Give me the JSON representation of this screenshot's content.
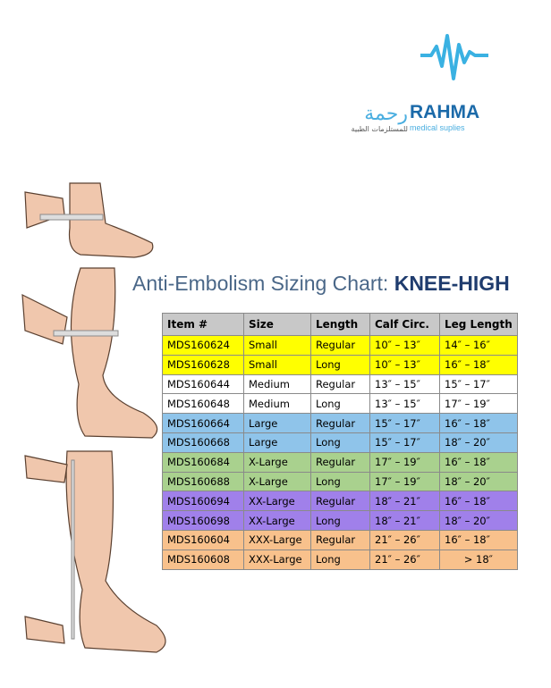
{
  "logo": {
    "name": "RAHMA",
    "tagline": "medical suplies",
    "arabic_name": "رحمة",
    "arabic_tagline": "للمستلزمات الطبية"
  },
  "title": {
    "text": "Anti-Embolism Sizing Chart: ",
    "emphasis": "KNEE-HIGH"
  },
  "table": {
    "header": [
      "Item #",
      "Size",
      "Length",
      "Calf Circ.",
      "Leg Length"
    ],
    "rows": [
      {
        "color": "#ffff00",
        "cells": [
          "MDS160624",
          "Small",
          "Regular",
          "10″ – 13″",
          "14″ – 16″"
        ]
      },
      {
        "color": "#ffff00",
        "cells": [
          "MDS160628",
          "Small",
          "Long",
          "10″ – 13″",
          "16″ – 18″"
        ]
      },
      {
        "color": "#ffffff",
        "cells": [
          "MDS160644",
          "Medium",
          "Regular",
          "13″ – 15″",
          "15″ – 17″"
        ]
      },
      {
        "color": "#ffffff",
        "cells": [
          "MDS160648",
          "Medium",
          "Long",
          "13″ – 15″",
          "17″ – 19″"
        ]
      },
      {
        "color": "#8fc4ea",
        "cells": [
          "MDS160664",
          "Large",
          "Regular",
          "15″ – 17″",
          "16″ – 18″"
        ]
      },
      {
        "color": "#8fc4ea",
        "cells": [
          "MDS160668",
          "Large",
          "Long",
          "15″ – 17″",
          "18″ – 20″"
        ]
      },
      {
        "color": "#a9d18e",
        "cells": [
          "MDS160684",
          "X-Large",
          "Regular",
          "17″ – 19″",
          "16″ – 18″"
        ]
      },
      {
        "color": "#a9d18e",
        "cells": [
          "MDS160688",
          "X-Large",
          "Long",
          "17″ – 19″",
          "18″ – 20″"
        ]
      },
      {
        "color": "#a080ea",
        "cells": [
          "MDS160694",
          "XX-Large",
          "Regular",
          "18″ – 21″",
          "16″ – 18″"
        ]
      },
      {
        "color": "#a080ea",
        "cells": [
          "MDS160698",
          "XX-Large",
          "Long",
          "18″ – 21″",
          "18″ – 20″"
        ]
      },
      {
        "color": "#f8c18c",
        "cells": [
          "MDS160604",
          "XXX-Large",
          "Regular",
          "21″ – 26″",
          "16″ – 18″"
        ]
      },
      {
        "color": "#f8c18c",
        "cells": [
          "MDS160608",
          "XXX-Large",
          "Long",
          "21″ – 26″",
          "> 18″"
        ]
      }
    ]
  }
}
